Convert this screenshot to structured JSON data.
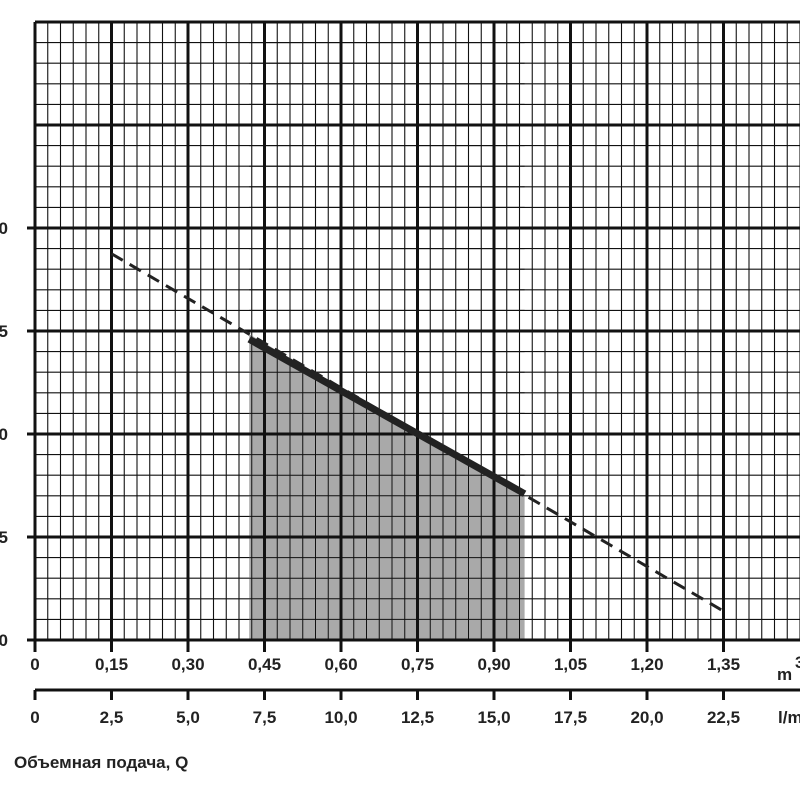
{
  "chart_data": {
    "type": "line",
    "title": "",
    "xlabel": "Объемная подача, Q",
    "x_axes": [
      {
        "name": "m3",
        "unit_label": "m",
        "unit_superscript": "3",
        "tick_values": [
          0,
          0.15,
          0.3,
          0.45,
          0.6,
          0.75,
          0.9,
          1.05,
          1.2,
          1.35
        ],
        "tick_labels": [
          "0",
          "0,15",
          "0,30",
          "0,45",
          "0,60",
          "0,75",
          "0,90",
          "1,05",
          "1,20",
          "1,35"
        ]
      },
      {
        "name": "l/min",
        "unit_label": "l/m",
        "tick_values": [
          0,
          2.5,
          5.0,
          7.5,
          10.0,
          12.5,
          15.0,
          17.5,
          20.0,
          22.5
        ],
        "tick_labels": [
          "0",
          "2,5",
          "5,0",
          "7,5",
          "10,0",
          "12,5",
          "15,0",
          "17,5",
          "20,0",
          "22,5"
        ]
      }
    ],
    "y_tick_labels": [
      "0",
      "5",
      "0",
      "5",
      "0",
      ""
    ],
    "xlim": [
      0,
      1.5
    ],
    "ylim": [
      0,
      6
    ],
    "grid": true,
    "series": [
      {
        "style": "dashed",
        "x": [
          0.15,
          1.35
        ],
        "y": [
          3.75,
          0.28
        ]
      },
      {
        "style": "solid-bold",
        "x": [
          0.42,
          0.96
        ],
        "y": [
          2.92,
          1.42
        ]
      }
    ],
    "shaded_region": {
      "x_range": [
        0.42,
        0.96
      ],
      "color": "#a9a9a9"
    },
    "colors": {
      "grid": "#111111",
      "line": "#222222",
      "fill": "#a9a9a9"
    }
  }
}
